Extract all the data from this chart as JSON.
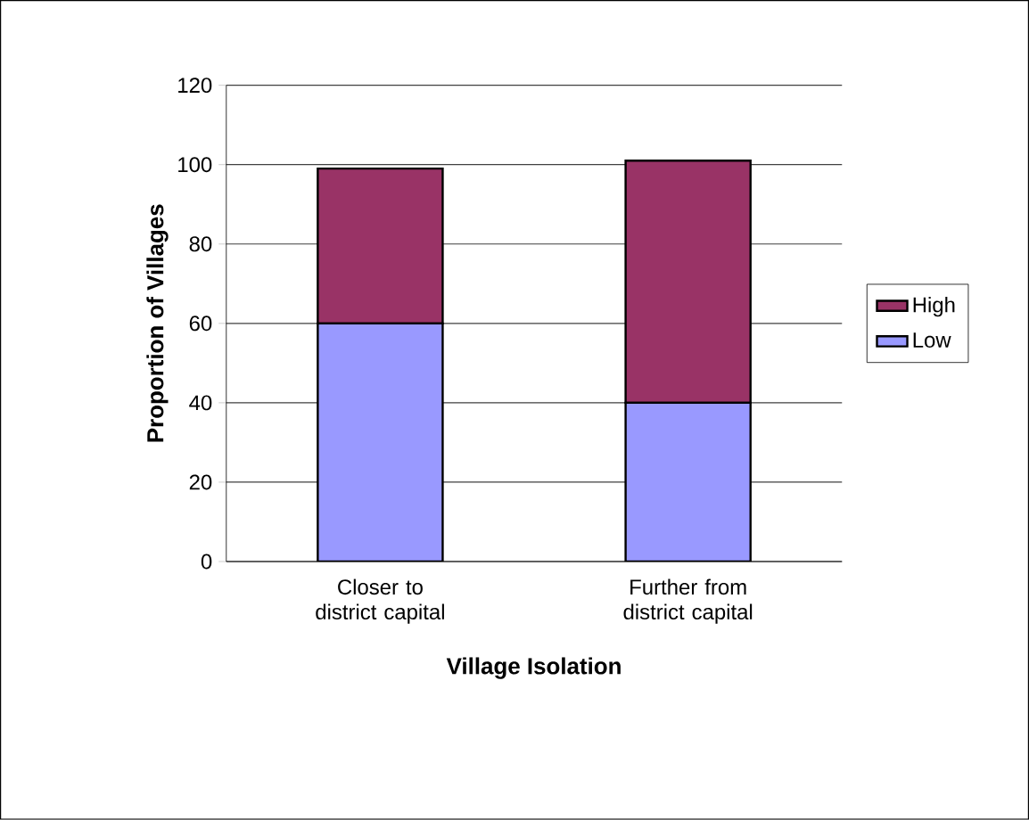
{
  "chart_data": {
    "type": "bar",
    "stacked": true,
    "xlabel": "Village Isolation",
    "ylabel": "Proportion of Villages",
    "categories": [
      "Closer to district capital",
      "Further from district capital"
    ],
    "series": [
      {
        "name": "Low",
        "color": "#9999ff",
        "values": [
          60,
          40
        ]
      },
      {
        "name": "High",
        "color": "#993366",
        "values": [
          39,
          61
        ]
      }
    ],
    "ylim": [
      0,
      120
    ],
    "yticks": [
      0,
      20,
      40,
      60,
      80,
      100,
      120
    ],
    "grid": "y",
    "legend": "right"
  }
}
